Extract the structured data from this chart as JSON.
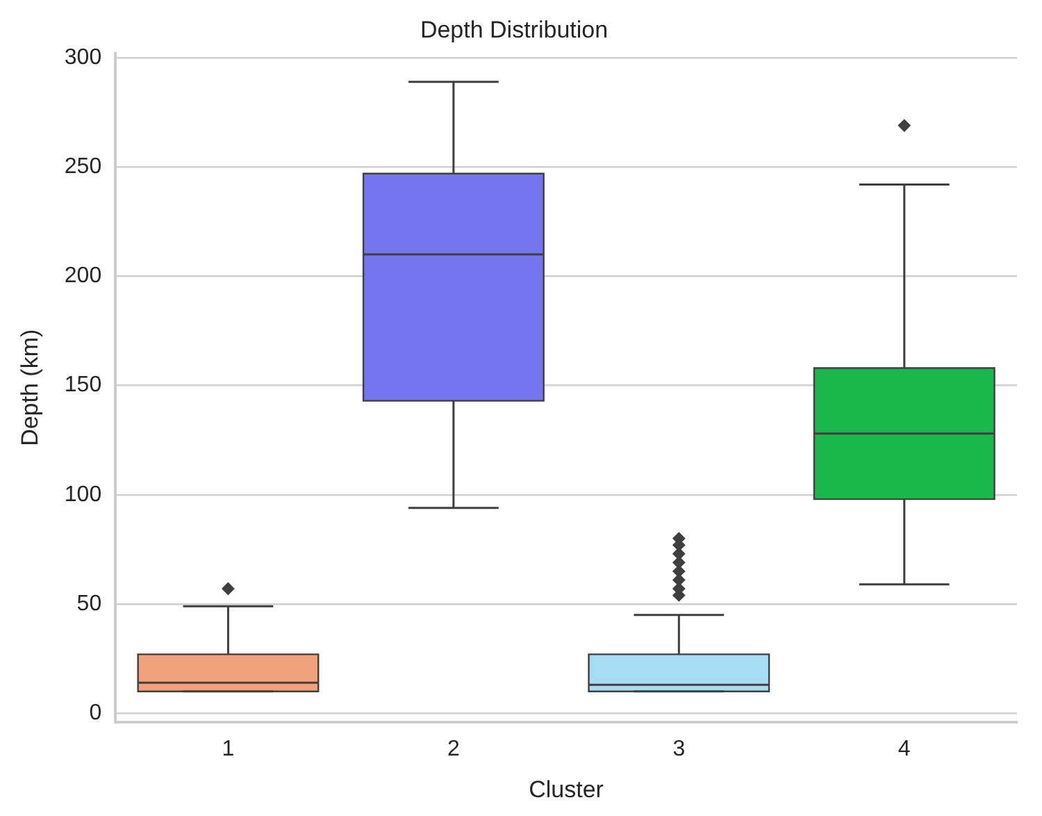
{
  "chart_data": {
    "type": "box",
    "title": "Depth Distribution",
    "xlabel": "Cluster",
    "ylabel": "Depth (km)",
    "categories": [
      "1",
      "2",
      "3",
      "4"
    ],
    "colors": [
      "#f0a07a",
      "#7575f0",
      "#a6dcf4",
      "#1ab84c"
    ],
    "boxes": [
      {
        "low": 10,
        "q1": 10,
        "median": 14,
        "q3": 27,
        "high": 49,
        "outliers": [
          57
        ]
      },
      {
        "low": 94,
        "q1": 143,
        "median": 210,
        "q3": 247,
        "high": 289
      },
      {
        "low": 10,
        "q1": 10,
        "median": 13,
        "q3": 27,
        "high": 45,
        "outliers": [
          54,
          57,
          61,
          65,
          69,
          73,
          77,
          80
        ]
      },
      {
        "low": 59,
        "q1": 98,
        "median": 128,
        "q3": 158,
        "high": 242,
        "outliers": [
          269
        ]
      }
    ],
    "ylim": [
      -4,
      302
    ],
    "yticks": [
      0,
      50,
      100,
      150,
      200,
      250,
      300
    ],
    "grid": "y",
    "marker": "diamond",
    "legend": false
  }
}
